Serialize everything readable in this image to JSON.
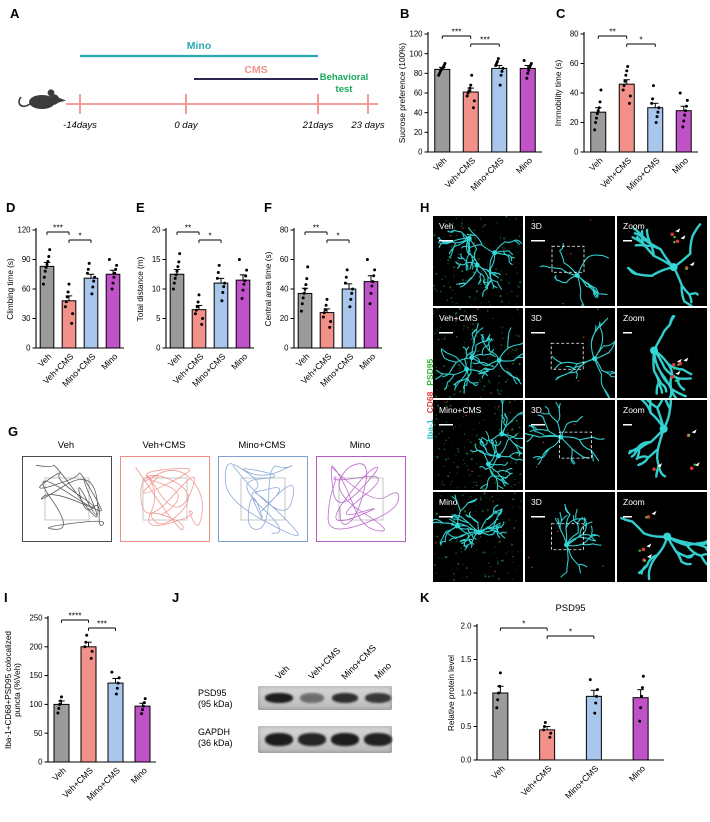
{
  "colors": {
    "groups": [
      "#9b9b9b",
      "#f2918a",
      "#a9c6ec",
      "#c052c8"
    ],
    "mino_line": "#2ba8b0",
    "cms_text": "#f2918a",
    "cms_line": "#27274f",
    "behavioral": "#18a85c",
    "timeline": "#f2918a",
    "trace_colors": [
      "#4a4a4a",
      "#ef8e88",
      "#7e9fd0",
      "#b45cc4"
    ]
  },
  "panels": {
    "A": {
      "label": "A",
      "mino_label": "Mino",
      "cms_label": "CMS",
      "behavioral_line1": "Behavioral",
      "behavioral_line2": "test",
      "timepoints": [
        "-14days",
        "0 day",
        "21days",
        "23 days"
      ]
    },
    "B": {
      "label": "B"
    },
    "C": {
      "label": "C"
    },
    "D": {
      "label": "D"
    },
    "E": {
      "label": "E"
    },
    "F": {
      "label": "F"
    },
    "G": {
      "label": "G",
      "groups": [
        {
          "name": "Veh",
          "color": "#4a4a4a"
        },
        {
          "name": "Veh+CMS",
          "color": "#ef8e88"
        },
        {
          "name": "Mino+CMS",
          "color": "#7e9fd0"
        },
        {
          "name": "Mino",
          "color": "#b45cc4"
        }
      ]
    },
    "H": {
      "label": "H",
      "rows": [
        "Veh",
        "Veh+CMS",
        "Mino+CMS",
        "Mino"
      ],
      "col_3d": "3D",
      "col_zoom": "Zoom",
      "side_label": [
        {
          "text": "Iba-1",
          "color": "#29c5c5"
        },
        {
          "text": "CD68",
          "color": "#e04040"
        },
        {
          "text": "PSD95",
          "color": "#2eb52e"
        }
      ]
    },
    "I": {
      "label": "I"
    },
    "J": {
      "label": "J",
      "lanes": [
        "Veh",
        "Veh+CMS",
        "Mino+CMS",
        "Mino"
      ],
      "blots": [
        {
          "name": "PSD95",
          "kda": "(95 kDa)",
          "intensities": [
            0.95,
            0.5,
            0.85,
            0.8
          ]
        },
        {
          "name": "GAPDH",
          "kda": "(36 kDa)",
          "intensities": [
            0.95,
            0.9,
            0.95,
            0.92
          ]
        }
      ]
    },
    "K": {
      "label": "K"
    }
  },
  "chart_data": [
    {
      "id": "B",
      "type": "bar",
      "categories": [
        "Veh",
        "Veh+CMS",
        "Mino+CMS",
        "Mino"
      ],
      "values": [
        84,
        61,
        85,
        85
      ],
      "errors": [
        2,
        4,
        3,
        3
      ],
      "points": [
        [
          78,
          80,
          82,
          84,
          85,
          86,
          88,
          90
        ],
        [
          45,
          52,
          57,
          60,
          62,
          65,
          68,
          78
        ],
        [
          68,
          78,
          82,
          85,
          88,
          90,
          92,
          95
        ],
        [
          75,
          80,
          83,
          86,
          88,
          90,
          93
        ]
      ],
      "ylabel": "Sucrose preference (100%)",
      "ylim": [
        0,
        120
      ],
      "yticks": [
        0,
        20,
        40,
        60,
        80,
        100,
        120
      ],
      "significance": [
        {
          "pair": [
            0,
            1
          ],
          "label": "***"
        },
        {
          "pair": [
            1,
            2
          ],
          "label": "***"
        }
      ]
    },
    {
      "id": "C",
      "type": "bar",
      "categories": [
        "Veh",
        "Veh+CMS",
        "Mino+CMS",
        "Mino"
      ],
      "values": [
        27,
        46,
        30,
        28
      ],
      "errors": [
        3,
        3,
        3,
        3
      ],
      "points": [
        [
          15,
          20,
          23,
          26,
          28,
          30,
          34,
          42
        ],
        [
          33,
          38,
          42,
          45,
          48,
          52,
          55,
          58
        ],
        [
          20,
          24,
          27,
          30,
          33,
          36,
          45
        ],
        [
          17,
          21,
          25,
          28,
          31,
          35,
          40
        ]
      ],
      "ylabel": "Immobility time (s)",
      "ylim": [
        0,
        80
      ],
      "yticks": [
        0,
        20,
        40,
        60,
        80
      ],
      "significance": [
        {
          "pair": [
            0,
            1
          ],
          "label": "**"
        },
        {
          "pair": [
            1,
            2
          ],
          "label": "*"
        }
      ]
    },
    {
      "id": "D",
      "type": "bar",
      "categories": [
        "Veh",
        "Veh+CMS",
        "Mino+CMS",
        "Mino"
      ],
      "values": [
        83,
        48,
        71,
        75
      ],
      "errors": [
        4,
        5,
        4,
        4
      ],
      "points": [
        [
          65,
          72,
          78,
          82,
          85,
          88,
          93,
          100
        ],
        [
          25,
          35,
          42,
          47,
          52,
          57,
          65
        ],
        [
          55,
          62,
          68,
          72,
          76,
          80,
          86
        ],
        [
          60,
          66,
          72,
          76,
          80,
          84,
          90
        ]
      ],
      "ylabel": "Climbing time (s)",
      "ylim": [
        0,
        120
      ],
      "yticks": [
        0,
        30,
        60,
        90,
        120
      ],
      "significance": [
        {
          "pair": [
            0,
            1
          ],
          "label": "***"
        },
        {
          "pair": [
            1,
            2
          ],
          "label": "*"
        }
      ]
    },
    {
      "id": "E",
      "type": "bar",
      "categories": [
        "Veh",
        "Veh+CMS",
        "Mino+CMS",
        "Mino"
      ],
      "values": [
        12.5,
        6.5,
        11,
        11.5
      ],
      "errors": [
        0.8,
        0.7,
        0.8,
        0.9
      ],
      "points": [
        [
          10,
          11,
          11.8,
          12.4,
          13,
          13.8,
          14.6,
          16
        ],
        [
          4,
          5,
          5.8,
          6.4,
          7,
          7.8,
          9
        ],
        [
          8,
          9.4,
          10.4,
          11,
          11.8,
          12.8,
          14
        ],
        [
          8.4,
          9.8,
          10.8,
          11.4,
          12.2,
          13.2,
          15
        ]
      ],
      "ylabel": "Total distance (m)",
      "ylim": [
        0,
        20
      ],
      "yticks": [
        0,
        5,
        10,
        15,
        20
      ],
      "significance": [
        {
          "pair": [
            0,
            1
          ],
          "label": "**"
        },
        {
          "pair": [
            1,
            2
          ],
          "label": "*"
        }
      ]
    },
    {
      "id": "F",
      "type": "bar",
      "categories": [
        "Veh",
        "Veh+CMS",
        "Mino+CMS",
        "Mino"
      ],
      "values": [
        37,
        24,
        40,
        45
      ],
      "errors": [
        3.5,
        2.5,
        3.5,
        4
      ],
      "points": [
        [
          25,
          30,
          34,
          37,
          40,
          43,
          47,
          55
        ],
        [
          14,
          18,
          21,
          24,
          26,
          29,
          33
        ],
        [
          28,
          33,
          37,
          40,
          44,
          48,
          53
        ],
        [
          30,
          37,
          42,
          45,
          49,
          53,
          60
        ]
      ],
      "ylabel": "Central area time (s)",
      "ylim": [
        0,
        80
      ],
      "yticks": [
        0,
        20,
        40,
        60,
        80
      ],
      "significance": [
        {
          "pair": [
            0,
            1
          ],
          "label": "**"
        },
        {
          "pair": [
            1,
            2
          ],
          "label": "*"
        }
      ]
    },
    {
      "id": "I",
      "type": "bar",
      "categories": [
        "Veh",
        "Veh+CMS",
        "Mino+CMS",
        "Mino"
      ],
      "values": [
        100,
        200,
        137,
        97
      ],
      "errors": [
        6,
        8,
        8,
        5
      ],
      "points": [
        [
          85,
          93,
          100,
          106,
          113
        ],
        [
          180,
          192,
          200,
          208,
          220
        ],
        [
          118,
          128,
          137,
          146,
          156
        ],
        [
          84,
          91,
          97,
          103,
          110
        ]
      ],
      "ylabel": "Iba-1+CD68+PSD95 colocalized",
      "ylabel2": "puncta (%Veh)",
      "ylim": [
        0,
        250
      ],
      "yticks": [
        0,
        50,
        100,
        150,
        200,
        250
      ],
      "significance": [
        {
          "pair": [
            0,
            1
          ],
          "label": "****"
        },
        {
          "pair": [
            1,
            2
          ],
          "label": "***"
        }
      ]
    },
    {
      "id": "K",
      "type": "bar",
      "title": "PSD95",
      "categories": [
        "Veh",
        "Veh+CMS",
        "Mino+CMS",
        "Mino"
      ],
      "values": [
        1.0,
        0.45,
        0.95,
        0.93
      ],
      "errors": [
        0.1,
        0.05,
        0.09,
        0.12
      ],
      "points": [
        [
          0.78,
          0.9,
          1.0,
          1.1,
          1.3
        ],
        [
          0.34,
          0.4,
          0.45,
          0.5,
          0.56
        ],
        [
          0.7,
          0.85,
          0.95,
          1.05,
          1.2
        ],
        [
          0.58,
          0.78,
          0.95,
          1.08,
          1.25
        ]
      ],
      "ylabel": "Relative protein level",
      "ylim": [
        0,
        2
      ],
      "yticks": [
        0,
        0.5,
        1,
        1.5,
        2
      ],
      "ytick_decimals": 1,
      "significance": [
        {
          "pair": [
            0,
            1
          ],
          "label": "*"
        },
        {
          "pair": [
            1,
            2
          ],
          "label": "*"
        }
      ]
    }
  ]
}
